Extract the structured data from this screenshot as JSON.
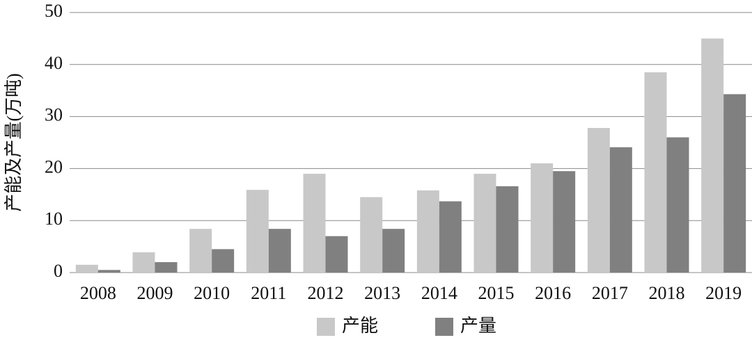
{
  "chart_data": {
    "type": "bar",
    "y_label": "产能及产量(万吨)",
    "categories": [
      "2008",
      "2009",
      "2010",
      "2011",
      "2012",
      "2013",
      "2014",
      "2015",
      "2016",
      "2017",
      "2018",
      "2019"
    ],
    "series": [
      {
        "name": "产能",
        "color": "#c8c8c8",
        "values": [
          1.5,
          3.9,
          8.4,
          15.9,
          19.0,
          14.5,
          15.8,
          19.0,
          21.0,
          27.8,
          38.5,
          45.0
        ]
      },
      {
        "name": "产量",
        "color": "#808080",
        "values": [
          0.5,
          2.0,
          4.5,
          8.4,
          7.0,
          8.4,
          13.7,
          16.6,
          19.5,
          24.1,
          26.0,
          34.3
        ]
      }
    ],
    "ylim": [
      0,
      50
    ],
    "yticks": [
      0,
      10,
      20,
      30,
      40,
      50
    ],
    "grid": true,
    "legend": "bottom"
  }
}
